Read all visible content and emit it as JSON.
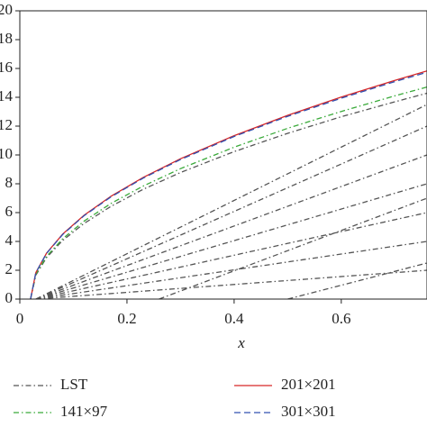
{
  "chart_data": {
    "type": "line",
    "x_label": "x",
    "xlim": [
      0,
      0.76
    ],
    "ylim": [
      0,
      20
    ],
    "xticks": [
      0,
      0.2,
      0.4,
      0.6
    ],
    "yticks": [
      0,
      2,
      4,
      6,
      8,
      10,
      12,
      14,
      16,
      18,
      20
    ],
    "series": [
      {
        "name": "LST",
        "color": "#555555",
        "dash": "dashdot",
        "x": [
          0.02,
          0.03,
          0.05,
          0.08,
          0.12,
          0.17,
          0.23,
          0.3,
          0.4,
          0.5,
          0.6,
          0.7,
          0.76,
          null,
          0.03,
          0.76,
          null,
          0.03,
          0.76,
          null,
          0.03,
          0.76,
          null,
          0.03,
          0.76,
          null,
          0.03,
          0.76,
          null,
          0.03,
          0.76,
          null,
          0.03,
          0.76,
          null,
          0.26,
          0.76,
          null,
          0.5,
          0.76
        ],
        "values": [
          0,
          1.66,
          2.88,
          4.07,
          5.25,
          6.43,
          7.61,
          8.78,
          10.23,
          11.5,
          12.65,
          13.69,
          14.28,
          null,
          0,
          2,
          null,
          0,
          4,
          null,
          0,
          6,
          null,
          0,
          8,
          null,
          0,
          10,
          null,
          0,
          12,
          null,
          0,
          13.5,
          null,
          0,
          7,
          null,
          0,
          2.5
        ]
      },
      {
        "name": "141×97",
        "color": "#3aaa3a",
        "dash": "dashdot",
        "x": [
          0.02,
          0.03,
          0.05,
          0.08,
          0.12,
          0.17,
          0.23,
          0.3,
          0.4,
          0.5,
          0.6,
          0.7,
          0.76
        ],
        "values": [
          0,
          1.71,
          2.96,
          4.19,
          5.41,
          6.63,
          7.84,
          9.05,
          10.54,
          11.85,
          13.02,
          14.1,
          14.71
        ]
      },
      {
        "name": "201×201",
        "color": "#d62728",
        "dash": "solid",
        "x": [
          0.02,
          0.03,
          0.05,
          0.08,
          0.12,
          0.17,
          0.23,
          0.3,
          0.4,
          0.5,
          0.6,
          0.7,
          0.76
        ],
        "values": [
          0,
          1.84,
          3.19,
          4.51,
          5.82,
          7.13,
          8.43,
          9.74,
          11.34,
          12.75,
          14.01,
          15.17,
          15.83
        ]
      },
      {
        "name": "301×301",
        "color": "#3050b0",
        "dash": "dashed",
        "x": [
          0.02,
          0.03,
          0.05,
          0.08,
          0.12,
          0.17,
          0.23,
          0.3,
          0.4,
          0.5,
          0.6,
          0.7,
          0.76
        ],
        "values": [
          0,
          1.83,
          3.17,
          4.48,
          5.79,
          7.09,
          8.39,
          9.68,
          11.28,
          12.68,
          13.94,
          15.09,
          15.74
        ]
      }
    ]
  }
}
